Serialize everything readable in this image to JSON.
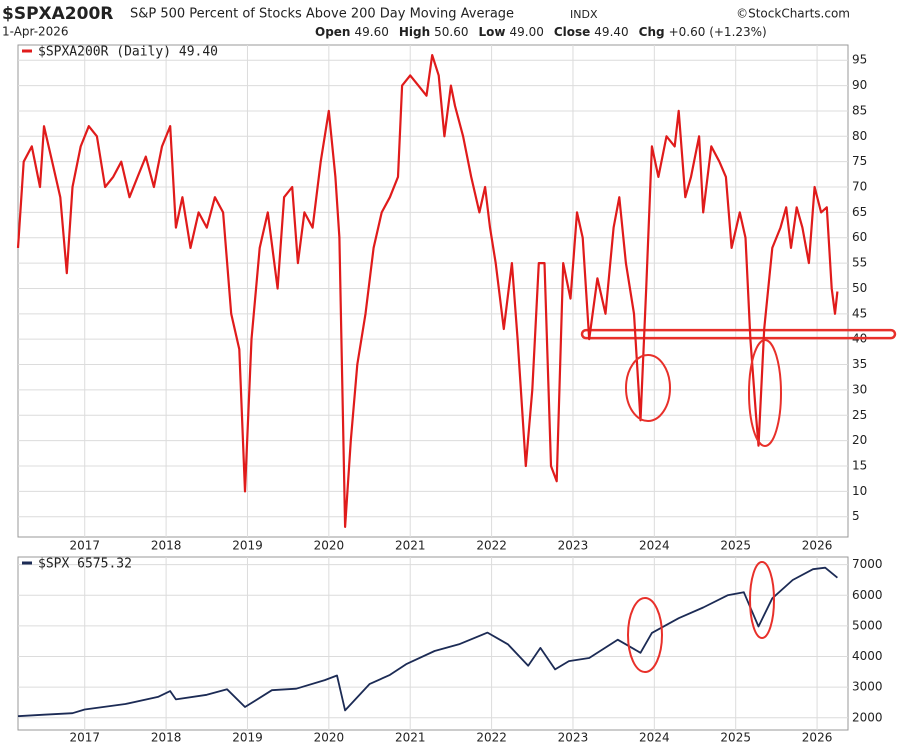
{
  "header": {
    "symbol": "$SPXA200R",
    "title": "S&P 500 Percent of Stocks Above 200 Day Moving Average",
    "exchange": "INDX",
    "source": "©StockCharts.com",
    "date": "1-Apr-2026",
    "ohlc": [
      {
        "label": "Open",
        "value": "49.60"
      },
      {
        "label": "High",
        "value": "50.60"
      },
      {
        "label": "Low",
        "value": "49.00"
      },
      {
        "label": "Close",
        "value": "49.40"
      },
      {
        "label": "Chg",
        "value": "+0.60 (+1.23%)"
      }
    ]
  },
  "chart_data": [
    {
      "type": "line",
      "xlim": [
        2016.18,
        2026.38
      ],
      "xticks": [
        2017,
        2018,
        2019,
        2020,
        2021,
        2022,
        2023,
        2024,
        2025,
        2026
      ],
      "ylim": [
        1,
        98
      ],
      "yticks": [
        5,
        10,
        15,
        20,
        25,
        30,
        35,
        40,
        45,
        50,
        55,
        60,
        65,
        70,
        75,
        80,
        85,
        90,
        95
      ],
      "grid": true,
      "reference_line": 41,
      "reference_color": "#e8302a",
      "x": [
        2016.18,
        2016.25,
        2016.35,
        2016.45,
        2016.5,
        2016.6,
        2016.7,
        2016.78,
        2016.85,
        2016.95,
        2017.05,
        2017.15,
        2017.25,
        2017.35,
        2017.45,
        2017.55,
        2017.65,
        2017.75,
        2017.85,
        2017.95,
        2018.05,
        2018.12,
        2018.2,
        2018.3,
        2018.4,
        2018.5,
        2018.6,
        2018.7,
        2018.8,
        2018.9,
        2018.97,
        2019.05,
        2019.15,
        2019.25,
        2019.37,
        2019.45,
        2019.55,
        2019.62,
        2019.7,
        2019.8,
        2019.9,
        2020.0,
        2020.08,
        2020.13,
        2020.2,
        2020.27,
        2020.35,
        2020.45,
        2020.55,
        2020.65,
        2020.75,
        2020.85,
        2020.9,
        2021.0,
        2021.1,
        2021.2,
        2021.27,
        2021.35,
        2021.42,
        2021.5,
        2021.55,
        2021.65,
        2021.75,
        2021.85,
        2021.92,
        2021.98,
        2022.05,
        2022.15,
        2022.25,
        2022.32,
        2022.42,
        2022.5,
        2022.58,
        2022.65,
        2022.73,
        2022.8,
        2022.88,
        2022.97,
        2023.05,
        2023.12,
        2023.2,
        2023.3,
        2023.4,
        2023.5,
        2023.57,
        2023.65,
        2023.75,
        2023.83,
        2023.9,
        2023.97,
        2024.05,
        2024.15,
        2024.25,
        2024.3,
        2024.38,
        2024.45,
        2024.55,
        2024.6,
        2024.7,
        2024.8,
        2024.88,
        2024.95,
        2025.05,
        2025.12,
        2025.18,
        2025.25,
        2025.28,
        2025.35,
        2025.45,
        2025.55,
        2025.62,
        2025.68,
        2025.75,
        2025.82,
        2025.9,
        2025.97,
        2026.05,
        2026.12,
        2026.18,
        2026.22,
        2026.25
      ],
      "series": [
        {
          "name": "$SPXA200R (Daily) 49.40",
          "color": "#e01b1b",
          "values": [
            58,
            75,
            78,
            70,
            82,
            75,
            68,
            53,
            70,
            78,
            82,
            80,
            70,
            72,
            75,
            68,
            72,
            76,
            70,
            78,
            82,
            62,
            68,
            58,
            65,
            62,
            68,
            65,
            45,
            38,
            10,
            40,
            58,
            65,
            50,
            68,
            70,
            55,
            65,
            62,
            75,
            85,
            72,
            60,
            3,
            20,
            35,
            45,
            58,
            65,
            68,
            72,
            90,
            92,
            90,
            88,
            96,
            92,
            80,
            90,
            86,
            80,
            72,
            65,
            70,
            62,
            55,
            42,
            55,
            40,
            15,
            30,
            55,
            55,
            15,
            12,
            55,
            48,
            65,
            60,
            40,
            52,
            45,
            62,
            68,
            55,
            45,
            24,
            50,
            78,
            72,
            80,
            78,
            85,
            68,
            72,
            80,
            65,
            78,
            75,
            72,
            58,
            65,
            60,
            40,
            25,
            19,
            42,
            58,
            62,
            66,
            58,
            66,
            62,
            55,
            70,
            65,
            66,
            50,
            45,
            49.4
          ]
        }
      ]
    },
    {
      "type": "line",
      "xlim": [
        2016.18,
        2026.38
      ],
      "xticks": [
        2017,
        2018,
        2019,
        2020,
        2021,
        2022,
        2023,
        2024,
        2025,
        2026
      ],
      "ylim": [
        1600,
        7250
      ],
      "yticks": [
        2000,
        3000,
        4000,
        5000,
        6000,
        7000
      ],
      "grid": true,
      "x": [
        2016.18,
        2016.5,
        2016.85,
        2017.0,
        2017.5,
        2017.9,
        2018.05,
        2018.12,
        2018.5,
        2018.75,
        2018.97,
        2019.3,
        2019.6,
        2019.95,
        2020.1,
        2020.2,
        2020.5,
        2020.75,
        2020.95,
        2021.3,
        2021.6,
        2021.95,
        2022.2,
        2022.45,
        2022.6,
        2022.78,
        2022.95,
        2023.2,
        2023.55,
        2023.83,
        2023.97,
        2024.3,
        2024.6,
        2024.9,
        2025.1,
        2025.28,
        2025.45,
        2025.7,
        2025.95,
        2026.1,
        2026.25
      ],
      "series": [
        {
          "name": "$SPX 6575.32",
          "color": "#1c2b55",
          "values": [
            2050,
            2100,
            2150,
            2270,
            2450,
            2680,
            2870,
            2600,
            2750,
            2930,
            2350,
            2900,
            2950,
            3230,
            3380,
            2240,
            3100,
            3400,
            3750,
            4180,
            4400,
            4780,
            4400,
            3700,
            4280,
            3580,
            3850,
            3950,
            4550,
            4120,
            4770,
            5250,
            5600,
            6000,
            6100,
            4980,
            5900,
            6500,
            6850,
            6900,
            6575.32
          ]
        }
      ]
    }
  ]
}
